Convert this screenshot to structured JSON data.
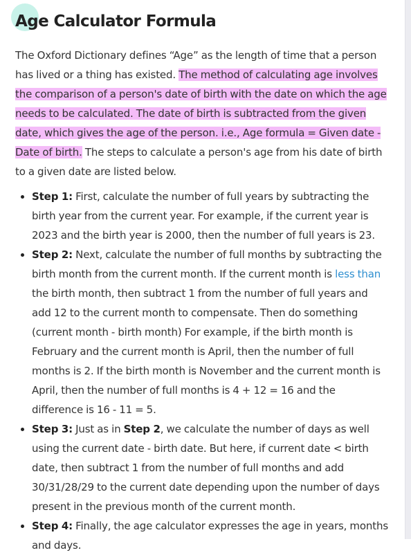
{
  "title": "Age Calculator Formula",
  "intro": {
    "lead": "The Oxford Dictionary defines “Age” as the length of time that a person has lived or a thing has existed.",
    "highlight": "The method of calculating age involves the comparison of a person's date of birth with the date on which the age needs to be calculated. The date of birth is subtracted from the given date, which gives the age of the person. i.e., Age formula = Given date - Date of birth.",
    "tail": "The steps to calculate a person's age from his date of birth to a given date are listed below."
  },
  "steps": [
    {
      "label": "Step 1:",
      "text": "First, calculate the number of full years by subtracting the birth year from the current year. For example, if the current year is 2023 and the birth year is 2000, then the number of full years is 23."
    },
    {
      "label": "Step 2:",
      "text_before_link": "Next, calculate the number of full months by subtracting the birth month from the current month. If the current month is",
      "link": "less than",
      "text_after_link": "the birth month, then subtract 1 from the number of full years and add 12 to the current month to compensate. Then do something (current month - birth month) For example, if the birth month is February and the current month is April, then the number of full months is 2. If the birth month is November and the current month is April, then the number of full months is 4 + 12 = 16 and the difference is 16 - 11 = 5."
    },
    {
      "label": "Step 3:",
      "text_before_bold": "Just as in",
      "bold": "Step 2",
      "text_after_bold": ", we calculate the number of days as well using the current date - birth date. But here, if current date < birth date, then subtract 1 from the number of full months and add 30/31/28/29 to the current date depending upon the number of days present in the previous month of the current month."
    },
    {
      "label": "Step 4:",
      "text": "Finally, the age calculator expresses the age in years, months and days."
    }
  ],
  "colors": {
    "highlight": "#f4bcf8",
    "link": "#2f8fd0",
    "title_dot": "#c8f2e9"
  }
}
